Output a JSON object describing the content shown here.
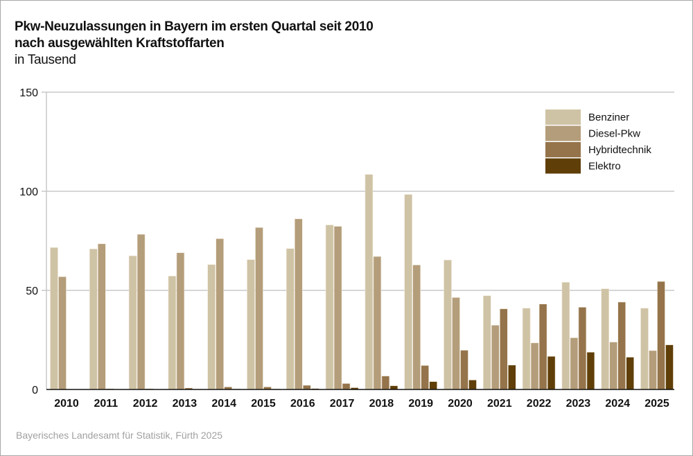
{
  "chart_data": {
    "type": "bar",
    "title": "Pkw-Neuzulassungen in Bayern im ersten Quartal seit 2010 nach ausgewählten Kraftstoffarten",
    "title_lines": [
      "Pkw-Neuzulassungen in Bayern im ersten Quartal seit 2010",
      "nach ausgewählten Kraftstoffarten"
    ],
    "subtitle": "in Tausend",
    "xlabel": "",
    "ylabel": "",
    "ylim": [
      0,
      150
    ],
    "yticks": [
      0,
      50,
      100,
      150
    ],
    "grid": true,
    "legend_position": "top-right",
    "categories": [
      "2010",
      "2011",
      "2012",
      "2013",
      "2014",
      "2015",
      "2016",
      "2017",
      "2018",
      "2019",
      "2020",
      "2021",
      "2022",
      "2023",
      "2024",
      "2025"
    ],
    "series": [
      {
        "name": "Benziner",
        "color": "#cfc3a5",
        "values": [
          71.6,
          70.9,
          67.4,
          57.2,
          63.0,
          65.5,
          71.1,
          83.0,
          108.5,
          98.4,
          65.3,
          47.3,
          41.0,
          54.1,
          50.8,
          41.0
        ]
      },
      {
        "name": "Diesel-Pkw",
        "color": "#b49d7a",
        "values": [
          56.9,
          73.5,
          78.3,
          69.0,
          76.1,
          81.7,
          86.1,
          82.3,
          67.1,
          62.8,
          46.4,
          32.4,
          23.5,
          26.1,
          23.9,
          19.6
        ]
      },
      {
        "name": "Hybridtechnik",
        "color": "#95744b",
        "values": [
          0.1,
          0.4,
          0.4,
          0.8,
          1.3,
          1.3,
          2.1,
          3.0,
          6.8,
          12.1,
          19.8,
          40.7,
          43.1,
          41.5,
          44.1,
          54.5
        ]
      },
      {
        "name": "Elektro",
        "color": "#5f3e08",
        "values": [
          0.0,
          0.1,
          0.1,
          0.2,
          0.3,
          0.3,
          0.5,
          0.9,
          1.9,
          4.0,
          4.8,
          12.3,
          16.7,
          18.8,
          16.3,
          22.5
        ]
      }
    ]
  },
  "source": "Bayerisches Landesamt für Statistik, Fürth 2025"
}
